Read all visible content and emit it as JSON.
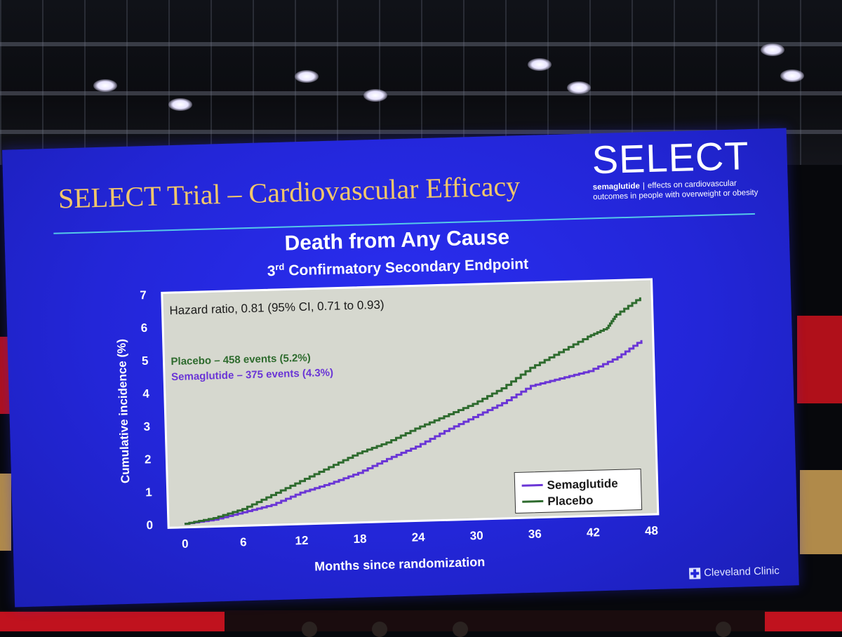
{
  "slide": {
    "title": "SELECT Trial – Cardiovascular Efficacy",
    "brand": {
      "name": "SELECT",
      "tag_bold": "semaglutide",
      "tag_separator": "|",
      "tag_line1": "effects on cardiovascular",
      "tag_line2": "outcomes in people with overweight or obesity"
    },
    "footer": "Cleveland Clinic"
  },
  "colors": {
    "slide_background": "#2326d8",
    "title": "#f2c76a",
    "plot_background": "#d6d8cf",
    "placebo": "#2e6b2e",
    "semaglutide": "#6a35d6"
  },
  "chart_data": {
    "type": "line",
    "title": "Death from Any Cause",
    "subtitle_ordinal": "3",
    "subtitle_suffix": "rd",
    "subtitle_rest": "Confirmatory Secondary Endpoint",
    "annotation": "Hazard ratio, 0.81 (95% CI, 0.71 to 0.93)",
    "xlabel": "Months since randomization",
    "ylabel": "Cumulative incidence (%)",
    "xlim": [
      0,
      48
    ],
    "ylim": [
      0,
      7
    ],
    "xticks": [
      0,
      6,
      12,
      18,
      24,
      30,
      36,
      42,
      48
    ],
    "yticks": [
      0,
      1,
      2,
      3,
      4,
      5,
      6,
      7
    ],
    "grid": false,
    "legend_position": "bottom-right",
    "series_notes": {
      "placebo": "Placebo – 458 events (5.2%)",
      "semaglutide": "Semaglutide – 375 events (4.3%)"
    },
    "series": [
      {
        "name": "Semaglutide",
        "x": [
          0,
          3,
          6,
          9,
          12,
          15,
          18,
          21,
          24,
          27,
          30,
          33,
          36,
          39,
          42,
          45,
          47.5
        ],
        "y": [
          0,
          0.1,
          0.3,
          0.5,
          0.85,
          1.1,
          1.4,
          1.8,
          2.15,
          2.6,
          3.0,
          3.4,
          3.9,
          4.1,
          4.3,
          4.7,
          5.2
        ]
      },
      {
        "name": "Placebo",
        "x": [
          0,
          3,
          6,
          9,
          12,
          15,
          18,
          21,
          24,
          27,
          30,
          33,
          36,
          39,
          42,
          44,
          45,
          47.5
        ],
        "y": [
          0,
          0.15,
          0.4,
          0.8,
          1.2,
          1.6,
          2.0,
          2.3,
          2.7,
          3.05,
          3.4,
          3.85,
          4.45,
          4.9,
          5.35,
          5.6,
          6.0,
          6.5
        ]
      }
    ]
  }
}
